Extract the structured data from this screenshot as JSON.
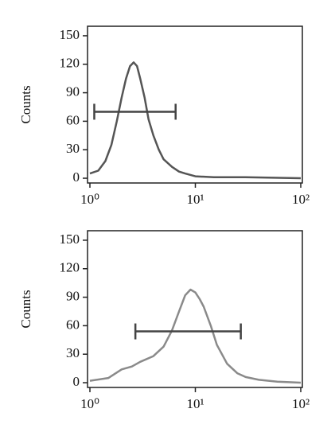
{
  "chart_data": [
    {
      "type": "line",
      "y_label": "Counts",
      "x_scale": "log",
      "color": "#555555",
      "x": [
        1,
        1.2,
        1.4,
        1.6,
        1.8,
        2,
        2.2,
        2.4,
        2.6,
        2.8,
        3,
        3.3,
        3.6,
        4,
        4.5,
        5,
        6,
        7,
        8,
        10,
        15,
        30,
        100
      ],
      "values": [
        5,
        8,
        18,
        35,
        60,
        85,
        105,
        118,
        122,
        118,
        105,
        85,
        62,
        45,
        30,
        20,
        12,
        7,
        5,
        2,
        1,
        1,
        0
      ],
      "xlim": [
        1,
        100
      ],
      "ylim": [
        -5,
        160
      ],
      "xticks": [
        {
          "value": 1,
          "label": "10⁰"
        },
        {
          "value": 10,
          "label": "10¹"
        },
        {
          "value": 100,
          "label": "10²"
        }
      ],
      "yticks": [
        0,
        30,
        60,
        90,
        120,
        150
      ],
      "gate": {
        "x": [
          1.1,
          6.5
        ],
        "y": 70
      }
    },
    {
      "type": "line",
      "y_label": "Counts",
      "x_scale": "log",
      "color": "#8a8a8a",
      "x": [
        1,
        1.5,
        2,
        2.5,
        3,
        4,
        5,
        6,
        7,
        8,
        9,
        10,
        11,
        12,
        14,
        16,
        20,
        25,
        30,
        40,
        60,
        100
      ],
      "values": [
        2,
        5,
        14,
        17,
        22,
        28,
        38,
        55,
        75,
        92,
        98,
        95,
        88,
        80,
        60,
        40,
        20,
        10,
        6,
        3,
        1,
        0
      ],
      "xlim": [
        1,
        100
      ],
      "ylim": [
        -5,
        160
      ],
      "xticks": [
        {
          "value": 1,
          "label": "10⁰"
        },
        {
          "value": 10,
          "label": "10¹"
        },
        {
          "value": 100,
          "label": "10²"
        }
      ],
      "yticks": [
        0,
        30,
        60,
        90,
        120,
        150
      ],
      "gate": {
        "x": [
          2.7,
          27
        ],
        "y": 54
      }
    }
  ]
}
